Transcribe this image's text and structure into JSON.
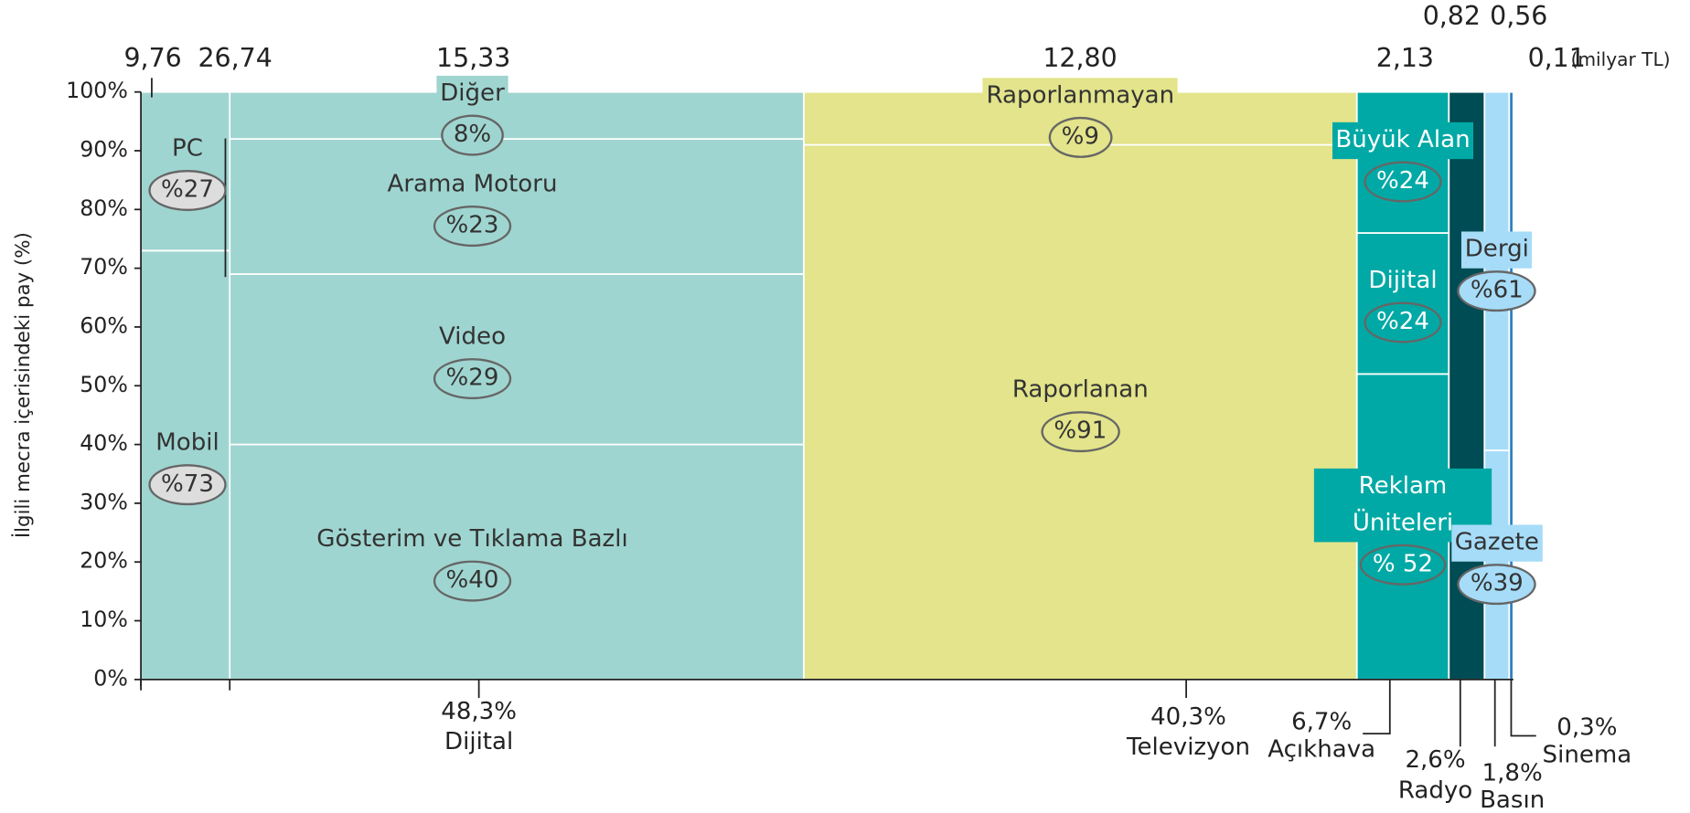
{
  "chart_data": {
    "type": "marimekko",
    "ylabel": "İlgili mecra içerisindeki pay (%)",
    "ylim": [
      0,
      100
    ],
    "yticks": [
      {
        "value": 0,
        "label": "0%"
      },
      {
        "value": 10,
        "label": "10%"
      },
      {
        "value": 20,
        "label": "20%"
      },
      {
        "value": 30,
        "label": "30%"
      },
      {
        "value": 40,
        "label": "40%"
      },
      {
        "value": 50,
        "label": "50%"
      },
      {
        "value": 60,
        "label": "60%"
      },
      {
        "value": 70,
        "label": "70%"
      },
      {
        "value": 80,
        "label": "80%"
      },
      {
        "value": 90,
        "label": "90%"
      },
      {
        "value": 100,
        "label": "100%"
      }
    ],
    "amount_unit": "(milyar TL)",
    "extra_amounts": [
      "9,76",
      "26,74"
    ],
    "device_split": {
      "color": "#9fd5d0",
      "segments": [
        {
          "name": "Mobil",
          "value": 73,
          "label": "%73"
        },
        {
          "name": "PC",
          "value": 27,
          "label": "%27"
        }
      ]
    },
    "columns": [
      {
        "name": "Dijital",
        "share": 48.3,
        "share_label": "48,3%",
        "amount": "15,33",
        "color": "#9fd5d0",
        "label_color": "#333",
        "segments": [
          {
            "name": "Gösterim ve Tıklama Bazlı",
            "value": 40,
            "label": "%40"
          },
          {
            "name": "Video",
            "value": 29,
            "label": "%29"
          },
          {
            "name": "Arama Motoru",
            "value": 23,
            "label": "%23"
          },
          {
            "name": "Diğer",
            "value": 8,
            "label": "8%"
          }
        ]
      },
      {
        "name": "Televizyon",
        "share": 40.3,
        "share_label": "40,3%",
        "amount": "12,80",
        "color": "#e3e48b",
        "label_color": "#333",
        "segments": [
          {
            "name": "Raporlanan",
            "value": 91,
            "label": "%91"
          },
          {
            "name": "Raporlanmayan",
            "value": 9,
            "label": "%9"
          }
        ]
      },
      {
        "name": "Açıkhava",
        "share": 6.7,
        "share_label": "6,7%",
        "amount": "2,13",
        "color": "#00a9a5",
        "label_color": "#ffffff",
        "segments": [
          {
            "name": "Reklam Üniteleri",
            "value": 52,
            "label": "% 52"
          },
          {
            "name": "Dijital",
            "value": 24,
            "label": "%24"
          },
          {
            "name": "Büyük Alan",
            "value": 24,
            "label": "%24"
          }
        ]
      },
      {
        "name": "Radyo",
        "share": 2.6,
        "share_label": "2,6%",
        "amount": "0,82",
        "color": "#004c54",
        "label_color": "#ffffff",
        "segments": []
      },
      {
        "name": "Basın",
        "share": 1.8,
        "share_label": "1,8%",
        "amount": "0,56",
        "color": "#a6dcf8",
        "label_color": "#333",
        "segments": [
          {
            "name": "Gazete",
            "value": 39,
            "label": "%39"
          },
          {
            "name": "Dergi",
            "value": 61,
            "label": "%61"
          }
        ]
      },
      {
        "name": "Sinema",
        "share": 0.3,
        "share_label": "0,3%",
        "amount": "0,11",
        "color": "#2a7fc0",
        "label_color": "#333",
        "segments": []
      }
    ]
  }
}
